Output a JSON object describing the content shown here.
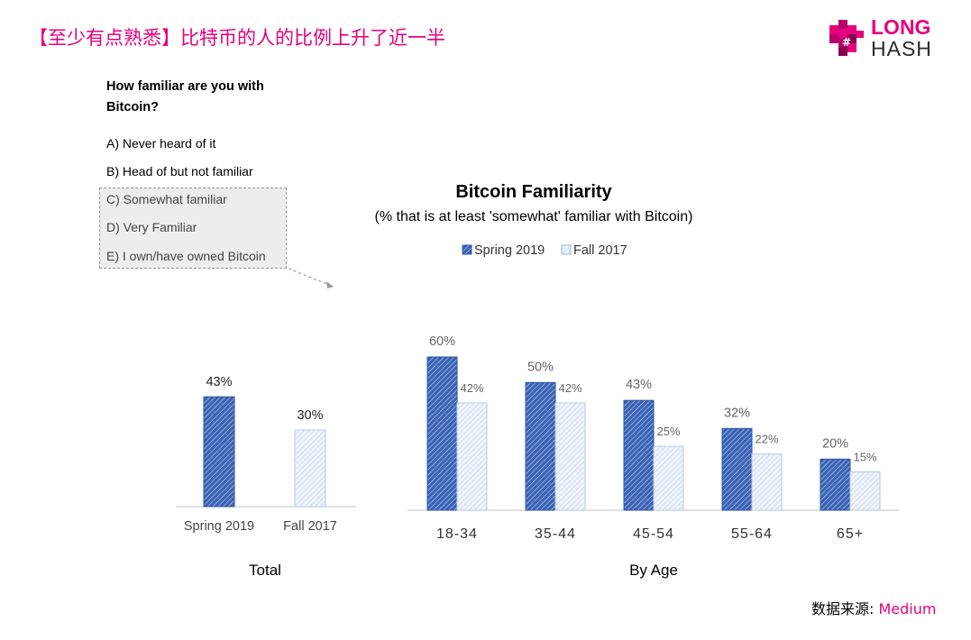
{
  "headline": "【至少有点熟悉】比特币的人的比例上升了近一半",
  "logo": {
    "line1": "LONG",
    "line2": "HASH"
  },
  "question": {
    "title": "How familiar are you with Bitcoin?",
    "options": [
      "A) Never heard of it",
      "B) Head of but not familiar",
      "C) Somewhat familiar",
      "D) Very Familiar",
      "E) I own/have owned Bitcoin"
    ]
  },
  "source": {
    "label": "数据来源:",
    "value": "Medium"
  },
  "colors": {
    "spring": "#2f55a4",
    "fall": "#c9d8ee",
    "accent": "#e6007e"
  },
  "chart_data": {
    "type": "bar",
    "title": "Bitcoin Familiarity",
    "subtitle": "(% that is at least 'somewhat' familiar with Bitcoin)",
    "legend": [
      "Spring 2019",
      "Fall 2017"
    ],
    "legend_position": "top-center",
    "grid": false,
    "panels": [
      {
        "name": "Total",
        "categories": [
          "Spring 2019",
          "Fall 2017"
        ],
        "values": [
          43,
          30
        ],
        "labels": [
          "43%",
          "30%"
        ]
      },
      {
        "name": "By Age",
        "categories": [
          "18-34",
          "35-44",
          "45-54",
          "55-64",
          "65+"
        ],
        "series": [
          {
            "name": "Spring 2019",
            "values": [
              60,
              50,
              43,
              32,
              20
            ],
            "labels": [
              "60%",
              "50%",
              "43%",
              "32%",
              "20%"
            ]
          },
          {
            "name": "Fall 2017",
            "values": [
              42,
              42,
              25,
              22,
              15
            ],
            "labels": [
              "42%",
              "42%",
              "25%",
              "22%",
              "15%"
            ]
          }
        ]
      }
    ],
    "ylim": [
      0,
      60
    ]
  }
}
